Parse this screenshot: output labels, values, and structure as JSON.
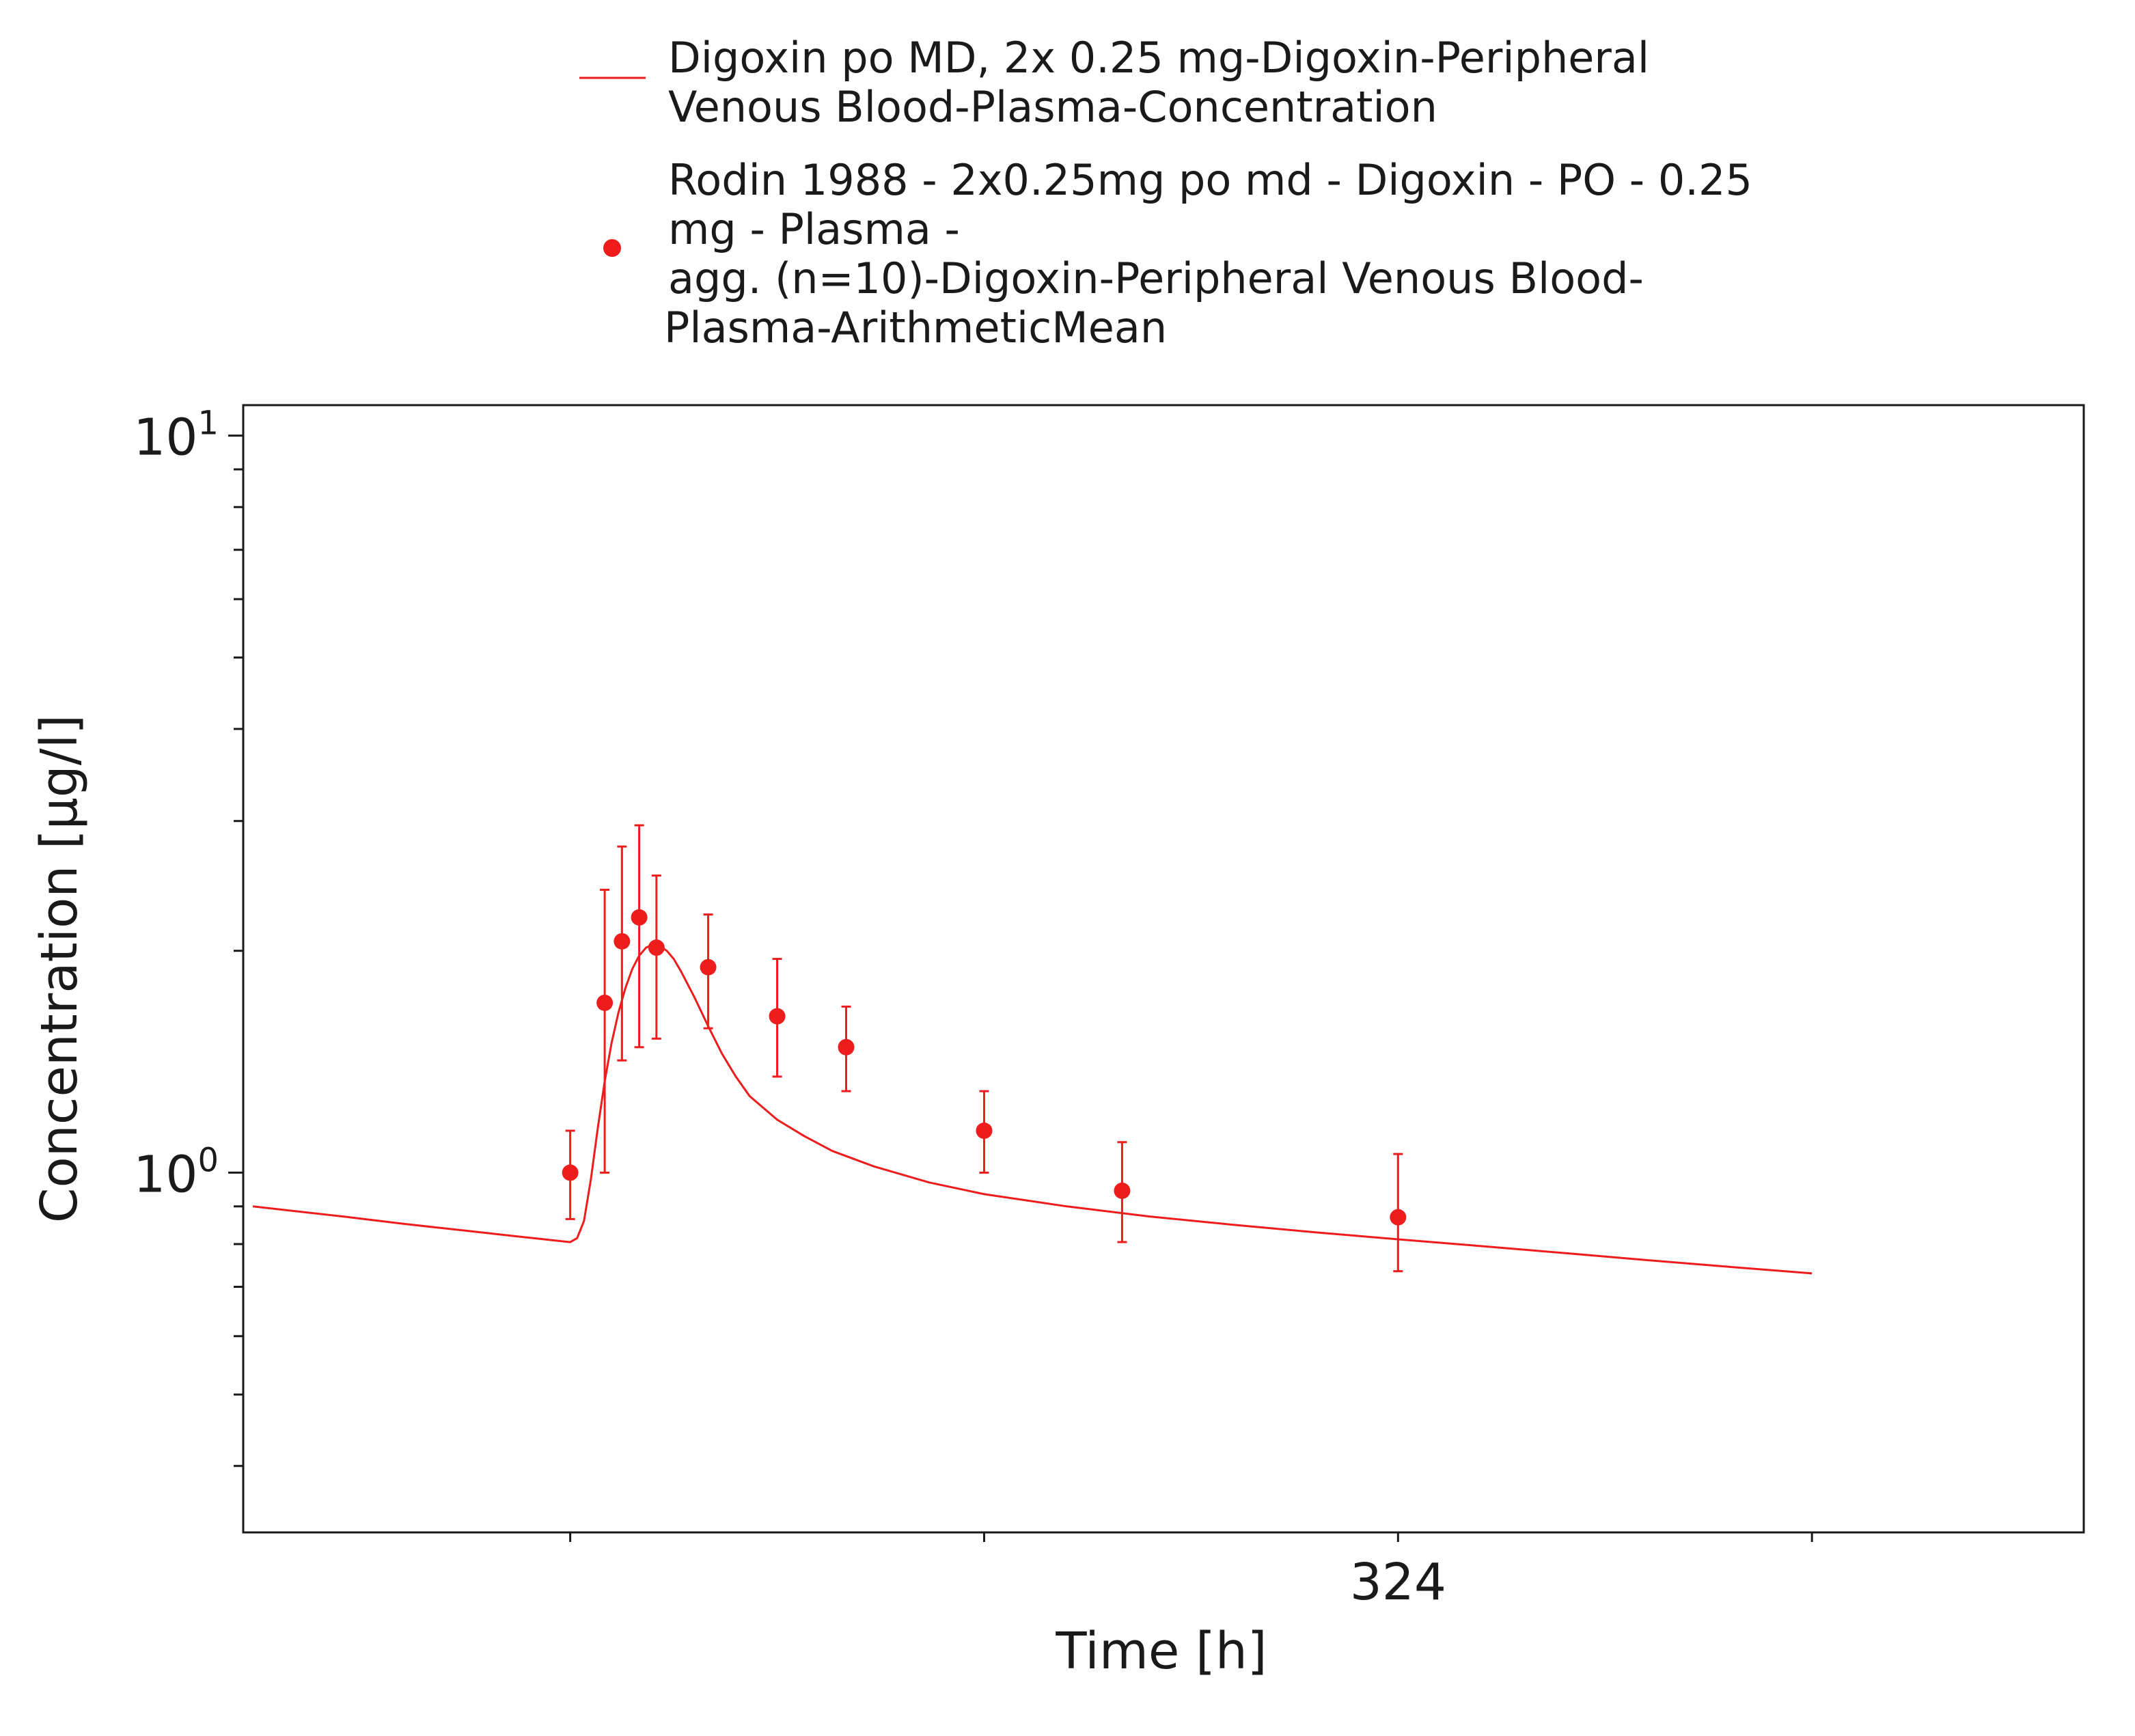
{
  "chart_data": {
    "type": "scatter",
    "xlabel": "Time [h]",
    "ylabel": "Concentration [µg/l]",
    "x_scale": "linear",
    "y_scale": "log",
    "xlim": [
      240.3,
      373.7
    ],
    "ylim": [
      0.325,
      11.0
    ],
    "x_ticks": [
      264,
      294,
      324,
      354
    ],
    "x_tick_labels": [
      "",
      "",
      "324",
      ""
    ],
    "y_major_ticks": [
      1,
      10
    ],
    "y_tick_labels": [
      {
        "base": "10",
        "exp": "0"
      },
      {
        "base": "10",
        "exp": "1"
      }
    ],
    "y_minor_ticks": [
      0.4,
      0.5,
      0.6,
      0.7,
      0.8,
      0.9,
      2,
      3,
      4,
      5,
      6,
      7,
      8,
      9
    ],
    "grid": false,
    "legend_position": "top",
    "series": [
      {
        "name": "Digoxin po MD, 2x 0.25 mg-Digoxin-Peripheral Venous Blood-Plasma-Concentration",
        "legend_lines": [
          "Digoxin po MD, 2x 0.25 mg-Digoxin-Peripheral",
          "Venous Blood-Plasma-Concentration"
        ],
        "kind": "line",
        "color": "#ee1c1c",
        "x": [
          241,
          244,
          248,
          252,
          256,
          260,
          264,
          264.5,
          265,
          265.5,
          266,
          266.5,
          267,
          267.5,
          268,
          268.5,
          269,
          269.5,
          270,
          270.5,
          271,
          271.5,
          272,
          273,
          274,
          275,
          276,
          277,
          279,
          281,
          283,
          286,
          290,
          294,
          300,
          306,
          312,
          318,
          324,
          330,
          336,
          342,
          348,
          354
        ],
        "y": [
          0.9,
          0.887,
          0.87,
          0.852,
          0.836,
          0.82,
          0.805,
          0.815,
          0.86,
          0.98,
          1.15,
          1.33,
          1.5,
          1.65,
          1.78,
          1.89,
          1.97,
          2.02,
          2.04,
          2.03,
          2.0,
          1.95,
          1.88,
          1.73,
          1.58,
          1.45,
          1.35,
          1.27,
          1.18,
          1.12,
          1.07,
          1.02,
          0.97,
          0.935,
          0.9,
          0.872,
          0.85,
          0.83,
          0.812,
          0.795,
          0.778,
          0.761,
          0.745,
          0.73
        ]
      },
      {
        "name": "Rodin 1988 - 2x0.25mg po md - Digoxin - PO - 0.25 mg - Plasma - agg. (n=10)-Digoxin-Peripheral Venous Blood-Plasma-ArithmeticMean",
        "legend_lines": [
          "Rodin 1988 - 2x0.25mg po md - Digoxin - PO - 0.25",
          "mg - Plasma -",
          "agg. (n=10)-Digoxin-Peripheral Venous Blood-",
          "Plasma-ArithmeticMean"
        ],
        "kind": "scatter",
        "color": "#ee1c1c",
        "x": [
          264,
          266.5,
          267.75,
          269,
          270.25,
          274,
          279,
          284,
          294,
          304,
          324
        ],
        "y": [
          1.0,
          1.7,
          2.06,
          2.22,
          2.02,
          1.9,
          1.63,
          1.48,
          1.14,
          0.945,
          0.87
        ],
        "error_low": [
          0.865,
          1.0,
          1.42,
          1.48,
          1.52,
          1.57,
          1.35,
          1.29,
          1.0,
          0.805,
          0.735
        ],
        "error_high": [
          1.14,
          2.42,
          2.77,
          2.96,
          2.53,
          2.24,
          1.95,
          1.68,
          1.29,
          1.1,
          1.06
        ]
      }
    ]
  }
}
